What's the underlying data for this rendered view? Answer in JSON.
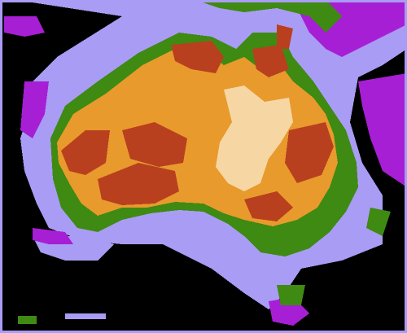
{
  "map": {
    "colors": {
      "ocean": "#000000",
      "shelf": "#a99cf5",
      "reef": "#a61fd4",
      "coast": "#3e8a12",
      "plain": "#e89a2c",
      "upland": "#b8401f",
      "basin": "#f6d7a4"
    }
  }
}
